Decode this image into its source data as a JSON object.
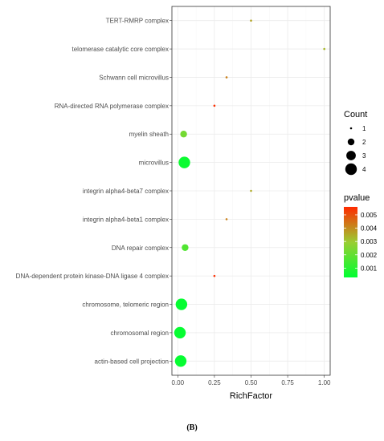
{
  "caption": "(B)",
  "chart_data": {
    "type": "scatter",
    "xlabel": "RichFactor",
    "ylabel": "",
    "xlim": [
      -0.04,
      1.04
    ],
    "x_ticks": [
      "0.00",
      "0.25",
      "0.50",
      "0.75",
      "1.00"
    ],
    "x_tick_values": [
      0,
      0.25,
      0.5,
      0.75,
      1.0
    ],
    "grid": true,
    "legend_placement": "right",
    "points": [
      {
        "term": "TERT-RMRP complex",
        "rich_factor": 0.5,
        "count": 1,
        "pvalue": 0.0036
      },
      {
        "term": "telomerase catalytic core complex",
        "rich_factor": 1.0,
        "count": 1,
        "pvalue": 0.0033
      },
      {
        "term": "Schwann cell microvillus",
        "rich_factor": 0.333,
        "count": 1,
        "pvalue": 0.0042
      },
      {
        "term": "RNA-directed RNA polymerase complex",
        "rich_factor": 0.25,
        "count": 1,
        "pvalue": 0.0055
      },
      {
        "term": "myelin sheath",
        "rich_factor": 0.04,
        "count": 2,
        "pvalue": 0.0023
      },
      {
        "term": "microvillus",
        "rich_factor": 0.045,
        "count": 4,
        "pvalue": 0.0005
      },
      {
        "term": "integrin alpha4-beta7 complex",
        "rich_factor": 0.5,
        "count": 1,
        "pvalue": 0.0035
      },
      {
        "term": "integrin alpha4-beta1 complex",
        "rich_factor": 0.333,
        "count": 1,
        "pvalue": 0.0042
      },
      {
        "term": "DNA repair complex",
        "rich_factor": 0.05,
        "count": 2,
        "pvalue": 0.0017
      },
      {
        "term": "DNA-dependent protein kinase-DNA ligase 4 complex",
        "rich_factor": 0.25,
        "count": 1,
        "pvalue": 0.0055
      },
      {
        "term": "chromosome, telomeric region",
        "rich_factor": 0.025,
        "count": 4,
        "pvalue": 0.0004
      },
      {
        "term": "chromosomal region",
        "rich_factor": 0.015,
        "count": 4,
        "pvalue": 0.0004
      },
      {
        "term": "actin-based cell projection",
        "rich_factor": 0.02,
        "count": 4,
        "pvalue": 0.0004
      }
    ],
    "size_legend": {
      "title": "Count",
      "levels": [
        1,
        2,
        3,
        4
      ],
      "labels": [
        "1",
        "2",
        "3",
        "4"
      ]
    },
    "color_legend": {
      "title": "pvalue",
      "low_color": "#00ff32",
      "mid_color": "#9acd32",
      "high_color": "#ff2a00",
      "min": 0.0003,
      "max": 0.0056,
      "ticks": [
        0.001,
        0.002,
        0.003,
        0.004,
        0.005
      ],
      "tick_labels": [
        "0.001",
        "0.002",
        "0.003",
        "0.004",
        "0.005"
      ]
    },
    "colors": {
      "panel_background": "#ffffff",
      "panel_border": "#333333",
      "grid_major": "#ebebeb",
      "grid_minor": "#f5f5f5"
    }
  }
}
